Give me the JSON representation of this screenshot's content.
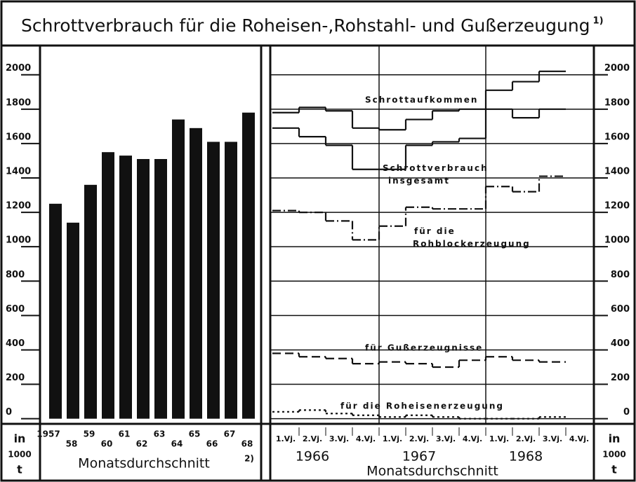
{
  "title": "Schrottverbrauch für die Roheisen-,Rohstahl- und Gußerzeugung",
  "title_note": "1)",
  "chart_data": [
    {
      "type": "bar",
      "categories": [
        "1957",
        "58",
        "59",
        "60",
        "61",
        "62",
        "63",
        "64",
        "65",
        "66",
        "67",
        "68"
      ],
      "values": [
        1250,
        1140,
        1360,
        1550,
        1530,
        1510,
        1510,
        1740,
        1690,
        1610,
        1610,
        1780
      ],
      "color": "#111111",
      "ylim": [
        -30,
        2170
      ],
      "yticks": [
        0,
        200,
        400,
        600,
        800,
        1000,
        1200,
        1400,
        1600,
        1800,
        2000
      ],
      "x_label": "Monatsdurchschnitt",
      "footnote": "2)",
      "y_label_lines": [
        "in",
        "1000",
        "t"
      ]
    },
    {
      "type": "step",
      "categories": [
        "1.Vj.",
        "2.Vj.",
        "3.Vj.",
        "4.Vj.",
        "1.Vj.",
        "2.Vj.",
        "3.Vj.",
        "4.Vj.",
        "1.Vj.",
        "2.Vj.",
        "3.Vj.",
        "4.Vj."
      ],
      "years": [
        "1966",
        "1967",
        "1968"
      ],
      "x_label": "Monatsdurchschnitt",
      "ylim": [
        -30,
        2170
      ],
      "yticks": [
        0,
        200,
        400,
        600,
        800,
        1000,
        1200,
        1400,
        1600,
        1800,
        2000
      ],
      "grid": true,
      "y_label_lines": [
        "in",
        "1000",
        "t"
      ],
      "series": [
        {
          "name": "Schrottaufkommen",
          "color": "#111111",
          "style": "solid",
          "values": [
            1780,
            1810,
            1790,
            1690,
            1680,
            1740,
            1790,
            1800,
            1910,
            1960,
            2020,
            null
          ]
        },
        {
          "name": "Schrottverbrauch insgesamt",
          "color": "#111111",
          "style": "solid",
          "values": [
            1690,
            1640,
            1590,
            1450,
            1450,
            1590,
            1610,
            1630,
            1800,
            1750,
            1800,
            null
          ]
        },
        {
          "name": "für die Rohblockerzeugung",
          "color": "#111111",
          "style": "dashdot",
          "values": [
            1210,
            1200,
            1150,
            1040,
            1120,
            1230,
            1220,
            1220,
            1350,
            1320,
            1410,
            null
          ]
        },
        {
          "name": "für Gußerzeugnisse",
          "color": "#111111",
          "style": "dashed",
          "values": [
            380,
            360,
            350,
            320,
            330,
            320,
            300,
            340,
            360,
            340,
            330,
            null
          ]
        },
        {
          "name": "für die Roheisenerzeugung",
          "color": "#111111",
          "style": "dotted",
          "values": [
            40,
            50,
            30,
            20,
            10,
            20,
            10,
            0,
            0,
            0,
            10,
            null
          ]
        }
      ]
    }
  ]
}
